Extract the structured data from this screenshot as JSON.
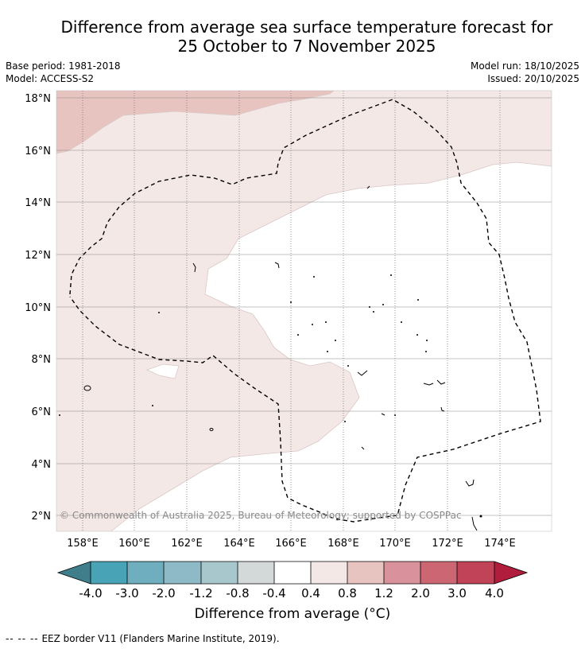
{
  "header": {
    "title_line1": "Difference from average sea surface temperature forecast for",
    "title_line2": "25 October to 7 November 2025",
    "base_period": "Base period: 1981-2018",
    "model": "Model: ACCESS-S2",
    "model_run": "Model run: 18/10/2025",
    "issued": "Issued: 20/10/2025"
  },
  "map": {
    "lat_ticks": [
      "18°N",
      "16°N",
      "14°N",
      "12°N",
      "10°N",
      "8°N",
      "6°N",
      "4°N",
      "2°N"
    ],
    "lon_ticks": [
      "158°E",
      "160°E",
      "162°E",
      "164°E",
      "166°E",
      "168°E",
      "170°E",
      "172°E",
      "174°E"
    ],
    "copyright": "© Commonwealth of Australia 2025, Bureau of Meteorology; supported by COSPPac",
    "eez_border": "EEZ border dashed line"
  },
  "colorbar": {
    "bins": [
      {
        "range": "< -4.0",
        "color": "#3f7f8c"
      },
      {
        "range": "-4.0 to -3.0",
        "color": "#49a3b6"
      },
      {
        "range": "-3.0 to -2.0",
        "color": "#6eaebe"
      },
      {
        "range": "-2.0 to -1.2",
        "color": "#8dbac6"
      },
      {
        "range": "-1.2 to -0.8",
        "color": "#a8c7cc"
      },
      {
        "range": "-0.8 to -0.4",
        "color": "#d3d8d9"
      },
      {
        "range": "-0.4 to 0.4",
        "color": "#ffffff"
      },
      {
        "range": "0.4 to 0.8",
        "color": "#f4e8e6"
      },
      {
        "range": "0.8 to 1.2",
        "color": "#e8c4c1"
      },
      {
        "range": "1.2 to 2.0",
        "color": "#d9929b"
      },
      {
        "range": "2.0 to 3.0",
        "color": "#cc6673"
      },
      {
        "range": "3.0 to 4.0",
        "color": "#c14357"
      },
      {
        "range": "> 4.0",
        "color": "#b01d3d"
      }
    ],
    "tick_labels": [
      "-4.0",
      "-3.0",
      "-2.0",
      "-1.2",
      "-0.8",
      "-0.4",
      "0.4",
      "0.8",
      "1.2",
      "2.0",
      "3.0",
      "4.0"
    ],
    "label": "Difference from average (°C)"
  },
  "footer": {
    "legend_dash": "--  --  --",
    "legend_text": "EEZ border V11 (Flanders Marine Institute, 2019)."
  }
}
